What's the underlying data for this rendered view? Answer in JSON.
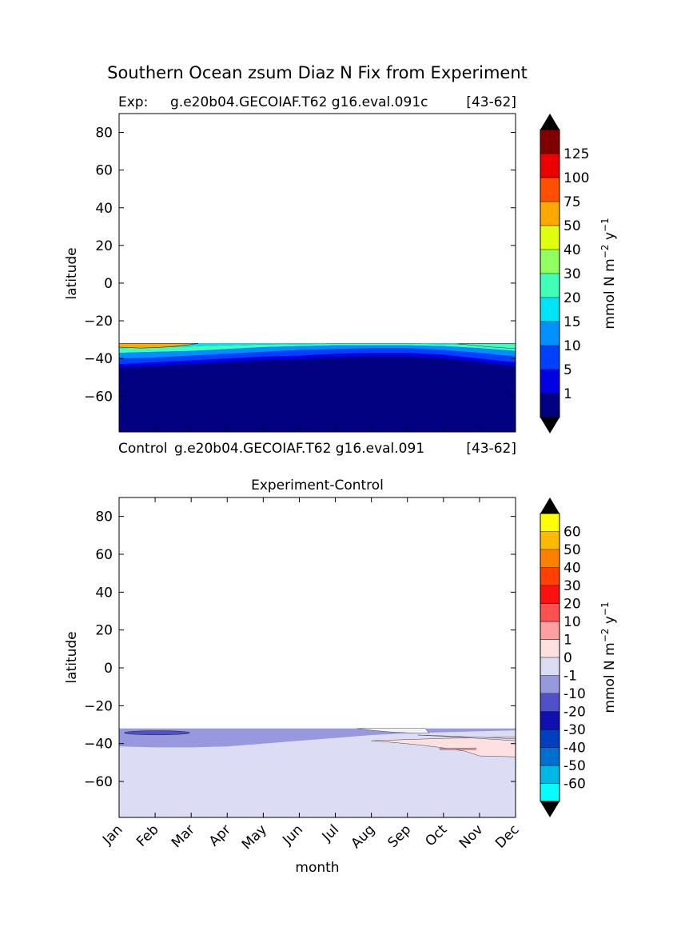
{
  "figure": {
    "title": "Southern Ocean zsum Diaz N Fix from Experiment"
  },
  "chart_data": [
    {
      "type": "contour",
      "subtitle_left": "Exp:",
      "subtitle_center": "g.e20b04.GECOIAF.T62 g16.eval.091c",
      "subtitle_right": "[43-62]",
      "xlabel": "",
      "ylabel": "latitude",
      "y_ticks": [
        80,
        60,
        40,
        20,
        0,
        -20,
        -40,
        -60
      ],
      "y_tick_labels": [
        "80",
        "60",
        "40",
        "20",
        "0",
        "−20",
        "−40",
        "−60"
      ],
      "ylim": [
        -79,
        90
      ],
      "xlim": [
        0,
        11
      ],
      "x_ticks": [],
      "data_lat_max": -32,
      "colorbar": {
        "label": "mmol N m−2 y−1",
        "label_main": "mmol N m",
        "label_exp1": "−2",
        "label_mid": " y",
        "label_exp2": "−1",
        "levels": [
          "1",
          "5",
          "10",
          "15",
          "20",
          "30",
          "40",
          "50",
          "75",
          "100",
          "125"
        ],
        "colors": [
          "#000080",
          "#0000e0",
          "#0040ff",
          "#0090ff",
          "#00e4f8",
          "#40ffb8",
          "#90ff60",
          "#e0ff10",
          "#ffa800",
          "#ff5000",
          "#ea0000",
          "#800000"
        ],
        "extend_colors": [
          "#000000",
          "#000000"
        ]
      }
    },
    {
      "type": "contour",
      "subtitle_left": "Control",
      "subtitle_center": "g.e20b04.GECOIAF.T62 g16.eval.091",
      "subtitle_right": "[43-62]",
      "title": "Experiment-Control",
      "xlabel": "month",
      "ylabel": "latitude",
      "y_ticks": [
        80,
        60,
        40,
        20,
        0,
        -20,
        -40,
        -60
      ],
      "y_tick_labels": [
        "80",
        "60",
        "40",
        "20",
        "0",
        "−20",
        "−40",
        "−60"
      ],
      "ylim": [
        -79,
        90
      ],
      "xlim": [
        0,
        11
      ],
      "x_ticks": [
        0,
        1,
        2,
        3,
        4,
        5,
        6,
        7,
        8,
        9,
        10,
        11
      ],
      "x_tick_labels": [
        "Jan",
        "Feb",
        "Mar",
        "Apr",
        "May",
        "Jun",
        "Jul",
        "Aug",
        "Sep",
        "Oct",
        "Nov",
        "Dec"
      ],
      "data_lat_max": -32,
      "colorbar": {
        "label": "mmol N m−2 y−1",
        "label_main": "mmol N m",
        "label_exp1": "−2",
        "label_mid": " y",
        "label_exp2": "−1",
        "levels": [
          "-60",
          "-50",
          "-40",
          "-30",
          "-20",
          "-10",
          "-1",
          "0",
          "1",
          "10",
          "20",
          "30",
          "40",
          "50",
          "60"
        ],
        "colors": [
          "#00ffff",
          "#00b8e8",
          "#0070d0",
          "#0040c0",
          "#1010b0",
          "#5050c8",
          "#9898e0",
          "#dcdcf4",
          "#ffe0e0",
          "#ffa0a0",
          "#ff5050",
          "#ff1010",
          "#ff4000",
          "#ff8000",
          "#ffb800",
          "#ffff00"
        ],
        "extend_colors": [
          "#000000",
          "#000000"
        ]
      }
    }
  ]
}
